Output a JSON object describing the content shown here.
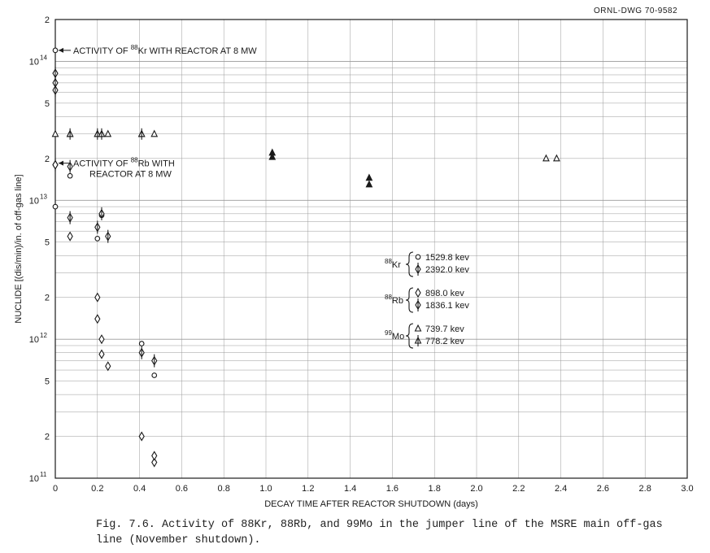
{
  "drawing_id": "ORNL-DWG 70-9582",
  "caption": {
    "prefix": "Fig. 7.6.",
    "text": "Activity of 88Kr, 88Rb, and 99Mo in the jumper line of the MSRE main off-gas line (November shutdown)."
  },
  "colors": {
    "ink": "#1a1a1a",
    "grid": "#9a9a9a",
    "background": "#ffffff"
  },
  "chart_data": {
    "type": "scatter",
    "title": "",
    "xlabel": "DECAY TIME AFTER REACTOR SHUTDOWN (days)",
    "ylabel": "NUCLIDE [(dis/min)/in. of off-gas line]",
    "xlim": [
      0,
      3.0
    ],
    "ylim": [
      100000000000.0,
      200000000000000.0
    ],
    "yscale": "log",
    "grid": true,
    "xticks": [
      "0",
      "0.2",
      "0.4",
      "0.6",
      "0.8",
      "1.0",
      "1.2",
      "1.4",
      "1.6",
      "1.8",
      "2.0",
      "2.2",
      "2.4",
      "2.6",
      "2.8",
      "3.0"
    ],
    "yticks": [
      {
        "value": 100000000000.0,
        "base": "10",
        "exp": "11"
      },
      {
        "value": 200000000000.0,
        "base": "2"
      },
      {
        "value": 500000000000.0,
        "base": "5"
      },
      {
        "value": 1000000000000.0,
        "base": "10",
        "exp": "12"
      },
      {
        "value": 2000000000000.0,
        "base": "2"
      },
      {
        "value": 5000000000000.0,
        "base": "5"
      },
      {
        "value": 10000000000000.0,
        "base": "10",
        "exp": "13"
      },
      {
        "value": 20000000000000.0,
        "base": "2"
      },
      {
        "value": 50000000000000.0,
        "base": "5"
      },
      {
        "value": 100000000000000.0,
        "base": "10",
        "exp": "14"
      },
      {
        "value": 200000000000000.0,
        "base": "2"
      }
    ],
    "annotations": [
      {
        "text": "ACTIVITY OF ",
        "sup": "88",
        "rest": "Kr WITH REACTOR AT 8 MW",
        "x": 0,
        "y": 120000000000000.0
      },
      {
        "text": "ACTIVITY OF ",
        "sup": "88",
        "rest": "Rb WITH",
        "line2": "REACTOR AT 8 MW",
        "x": 0,
        "y": 18500000000000.0
      }
    ],
    "legend": {
      "position": "center-right",
      "groups": [
        {
          "nuclide": "Kr",
          "mass": "88",
          "entries": [
            {
              "marker": "circle",
              "label": "1529.8 kev"
            },
            {
              "marker": "diamond-bar",
              "label": "2392.0 kev"
            }
          ]
        },
        {
          "nuclide": "Rb",
          "mass": "88",
          "entries": [
            {
              "marker": "diamond",
              "label": "898.0 kev"
            },
            {
              "marker": "diamond-bar",
              "label": "1836.1 kev"
            }
          ]
        },
        {
          "nuclide": "Mo",
          "mass": "99",
          "entries": [
            {
              "marker": "triangle",
              "label": "739.7 kev"
            },
            {
              "marker": "triangle-bar",
              "label": "778.2 kev"
            }
          ]
        }
      ]
    },
    "series": [
      {
        "marker": "circle",
        "points": [
          [
            0,
            120000000000000.0
          ],
          [
            0,
            9000000000000.0
          ],
          [
            0.07,
            15000000000000.0
          ],
          [
            0.2,
            5300000000000.0
          ],
          [
            0.22,
            7800000000000.0
          ],
          [
            0.41,
            930000000000.0
          ],
          [
            0.47,
            550000000000.0
          ]
        ]
      },
      {
        "marker": "diamond-bar",
        "points": [
          [
            0,
            82000000000000.0
          ],
          [
            0,
            70000000000000.0
          ],
          [
            0,
            62000000000000.0
          ],
          [
            0,
            18000000000000.0
          ],
          [
            0.07,
            17500000000000.0
          ],
          [
            0.07,
            7500000000000.0
          ],
          [
            0.2,
            6400000000000.0
          ],
          [
            0.22,
            8000000000000.0
          ],
          [
            0.25,
            5500000000000.0
          ],
          [
            0.41,
            800000000000.0
          ],
          [
            0.47,
            700000000000.0
          ]
        ]
      },
      {
        "marker": "diamond",
        "points": [
          [
            0,
            18000000000000.0
          ],
          [
            0.07,
            5500000000000.0
          ],
          [
            0.2,
            2000000000000.0
          ],
          [
            0.2,
            1400000000000.0
          ],
          [
            0.22,
            1000000000000.0
          ],
          [
            0.22,
            780000000000.0
          ],
          [
            0.25,
            640000000000.0
          ],
          [
            0.41,
            200000000000.0
          ],
          [
            0.47,
            130000000000.0
          ],
          [
            0.47,
            145000000000.0
          ]
        ]
      },
      {
        "marker": "triangle",
        "points": [
          [
            0,
            30000000000000.0
          ],
          [
            0.07,
            30000000000000.0
          ],
          [
            0.2,
            30000000000000.0
          ],
          [
            0.22,
            30000000000000.0
          ],
          [
            0.25,
            30000000000000.0
          ],
          [
            0.41,
            30000000000000.0
          ],
          [
            0.47,
            30000000000000.0
          ],
          [
            2.33,
            20000000000000.0
          ],
          [
            2.38,
            20000000000000.0
          ]
        ]
      },
      {
        "marker": "triangle-bar",
        "points": [
          [
            0.07,
            30000000000000.0
          ],
          [
            0.2,
            30000000000000.0
          ],
          [
            0.22,
            30000000000000.0
          ],
          [
            0.41,
            30000000000000.0
          ]
        ]
      },
      {
        "marker": "triangle-filled",
        "points": [
          [
            1.03,
            22000000000000.0
          ],
          [
            1.03,
            20500000000000.0
          ],
          [
            1.49,
            14500000000000.0
          ],
          [
            1.49,
            13000000000000.0
          ]
        ]
      }
    ]
  }
}
